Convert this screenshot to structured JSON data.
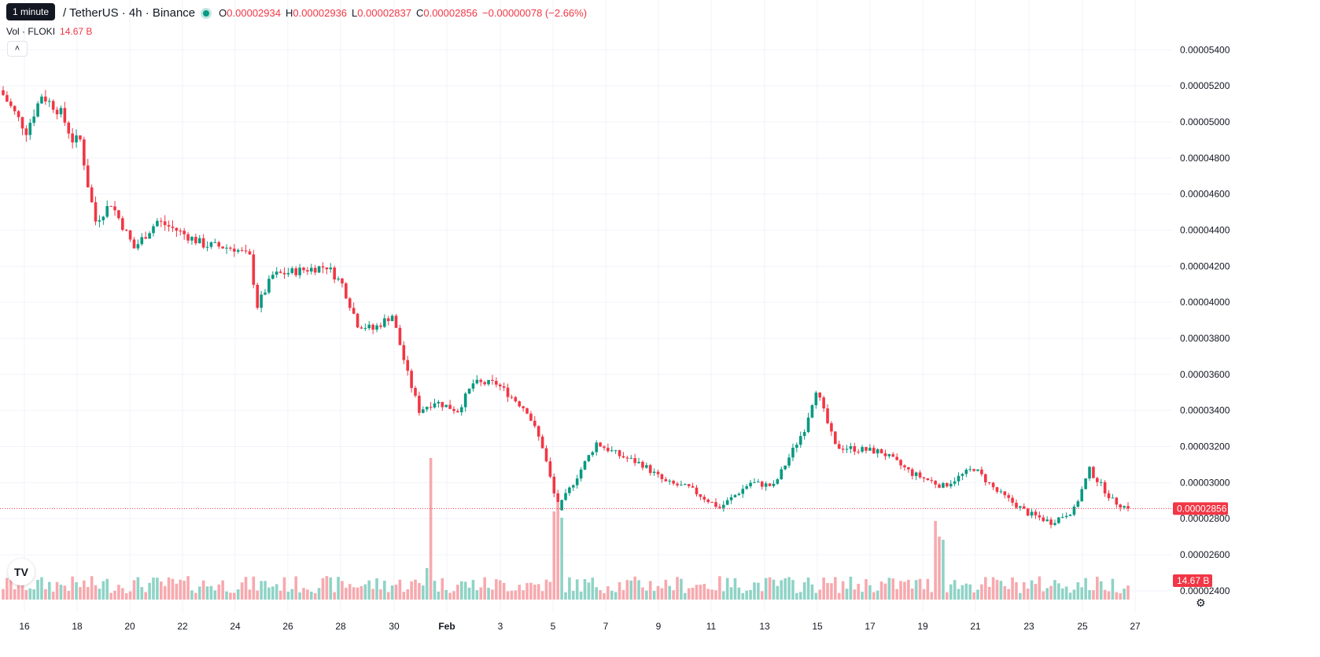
{
  "header": {
    "tooltip": "1 minute",
    "symbol": "/ TetherUS · 4h · Binance",
    "open_label": "O",
    "open": "0.00002934",
    "high_label": "H",
    "high": "0.00002936",
    "low_label": "L",
    "low": "0.00002837",
    "close_label": "C",
    "close": "0.00002856",
    "change": "−0.00000078 (−2.66%)",
    "vol_label": "Vol · FLOKI",
    "vol_value": "14.67 B"
  },
  "price_axis": {
    "labels": [
      "0.00005400",
      "0.00005200",
      "0.00005000",
      "0.00004800",
      "0.00004600",
      "0.00004400",
      "0.00004200",
      "0.00004000",
      "0.00003800",
      "0.00003600",
      "0.00003400",
      "0.00003200",
      "0.00003000",
      "0.00002800",
      "0.00002600",
      "0.00002400"
    ],
    "last_price_tag": "0.00002856",
    "volume_tag": "14.67 B"
  },
  "colors": {
    "up": "#089981",
    "down": "#f23645",
    "up_vol": "#8fd3c6",
    "down_vol": "#f7a9ae",
    "grid": "#f0f3fa"
  },
  "chart_data": {
    "type": "candlestick",
    "title": "/ TetherUS · 4h · Binance",
    "x_tick_labels": [
      "16",
      "18",
      "20",
      "22",
      "24",
      "26",
      "28",
      "30",
      "Feb",
      "3",
      "5",
      "7",
      "9",
      "11",
      "13",
      "15",
      "17",
      "19",
      "21",
      "23",
      "25",
      "27"
    ],
    "ylim": [
      2.36e-05,
      5.48e-05
    ],
    "anchors": [
      [
        0,
        5.15e-05
      ],
      [
        6,
        4.95e-05
      ],
      [
        10,
        5.15e-05
      ],
      [
        15,
        5.05e-05
      ],
      [
        18,
        4.9e-05
      ],
      [
        20,
        4.9e-05
      ],
      [
        22,
        4.65e-05
      ],
      [
        24,
        4.45e-05
      ],
      [
        28,
        4.55e-05
      ],
      [
        34,
        4.3e-05
      ],
      [
        40,
        4.45e-05
      ],
      [
        45,
        4.4e-05
      ],
      [
        52,
        4.32e-05
      ],
      [
        60,
        4.3e-05
      ],
      [
        64,
        4.25e-05
      ],
      [
        66,
        3.98e-05
      ],
      [
        70,
        4.15e-05
      ],
      [
        78,
        4.18e-05
      ],
      [
        84,
        4.2e-05
      ],
      [
        88,
        4.1e-05
      ],
      [
        92,
        3.88e-05
      ],
      [
        96,
        3.85e-05
      ],
      [
        101,
        3.93e-05
      ],
      [
        105,
        3.6e-05
      ],
      [
        108,
        3.4e-05
      ],
      [
        112,
        3.45e-05
      ],
      [
        118,
        3.4e-05
      ],
      [
        122,
        3.55e-05
      ],
      [
        128,
        3.55e-05
      ],
      [
        136,
        3.4e-05
      ],
      [
        140,
        3.2e-05
      ],
      [
        144,
        2.85e-05
      ],
      [
        148,
        3e-05
      ],
      [
        154,
        3.22e-05
      ],
      [
        160,
        3.15e-05
      ],
      [
        166,
        3.1e-05
      ],
      [
        172,
        3e-05
      ],
      [
        178,
        2.97e-05
      ],
      [
        186,
        2.86e-05
      ],
      [
        194,
        3e-05
      ],
      [
        200,
        2.98e-05
      ],
      [
        208,
        3.3e-05
      ],
      [
        211,
        3.52e-05
      ],
      [
        216,
        3.2e-05
      ],
      [
        228,
        3.17e-05
      ],
      [
        236,
        3.05e-05
      ],
      [
        244,
        2.98e-05
      ],
      [
        252,
        3.08e-05
      ],
      [
        258,
        2.95e-05
      ],
      [
        266,
        2.83e-05
      ],
      [
        272,
        2.78e-05
      ],
      [
        278,
        2.85e-05
      ],
      [
        282,
        3.07e-05
      ],
      [
        288,
        2.9e-05
      ],
      [
        292,
        2.856e-05
      ]
    ],
    "candle_count": 293,
    "volume_spikes": {
      "110": 0.0,
      "111": 3.5,
      "143": 1.8,
      "144": 2.1,
      "145": 1.6,
      "242": 1.5,
      "243": 1.0,
      "244": 0.9
    },
    "last_close": 2.856e-05,
    "last_volume": "14.67 B"
  }
}
